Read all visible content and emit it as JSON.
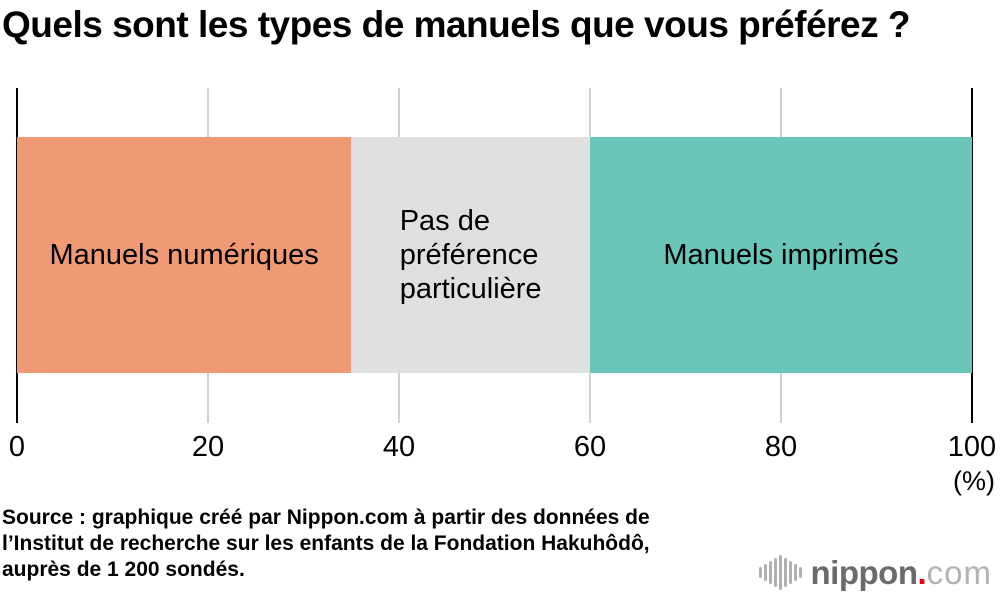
{
  "title": "Quels sont les types de manuels que vous préférez ?",
  "chart_data": {
    "type": "bar",
    "orientation": "horizontal",
    "stacked": true,
    "unit": "%",
    "title": "Quels sont les types de manuels que vous préférez ?",
    "segments": [
      {
        "label": "Manuels numériques",
        "value": 35,
        "color": "#f09a75"
      },
      {
        "label": "Pas de\npréférence\nparticulière",
        "value": 25,
        "color": "#e0e0e0"
      },
      {
        "label": "Manuels imprimés",
        "value": 40,
        "color": "#6ac6b8"
      }
    ],
    "x_ticks": [
      0,
      20,
      40,
      60,
      80,
      100
    ],
    "x_range": [
      0,
      100
    ],
    "axis_unit_label": "(%)",
    "grid": true,
    "gridline_color": "#d2d2d2",
    "axis_color": "#000000"
  },
  "source": "Source : graphique créé par Nippon.com à partir des données de\nl’Institut de recherche sur les enfants de la Fondation Hakuhôdô,\nauprès de 1 200 sondés.",
  "logo": {
    "name": "nippon",
    "dot": ".",
    "tld": "com"
  }
}
